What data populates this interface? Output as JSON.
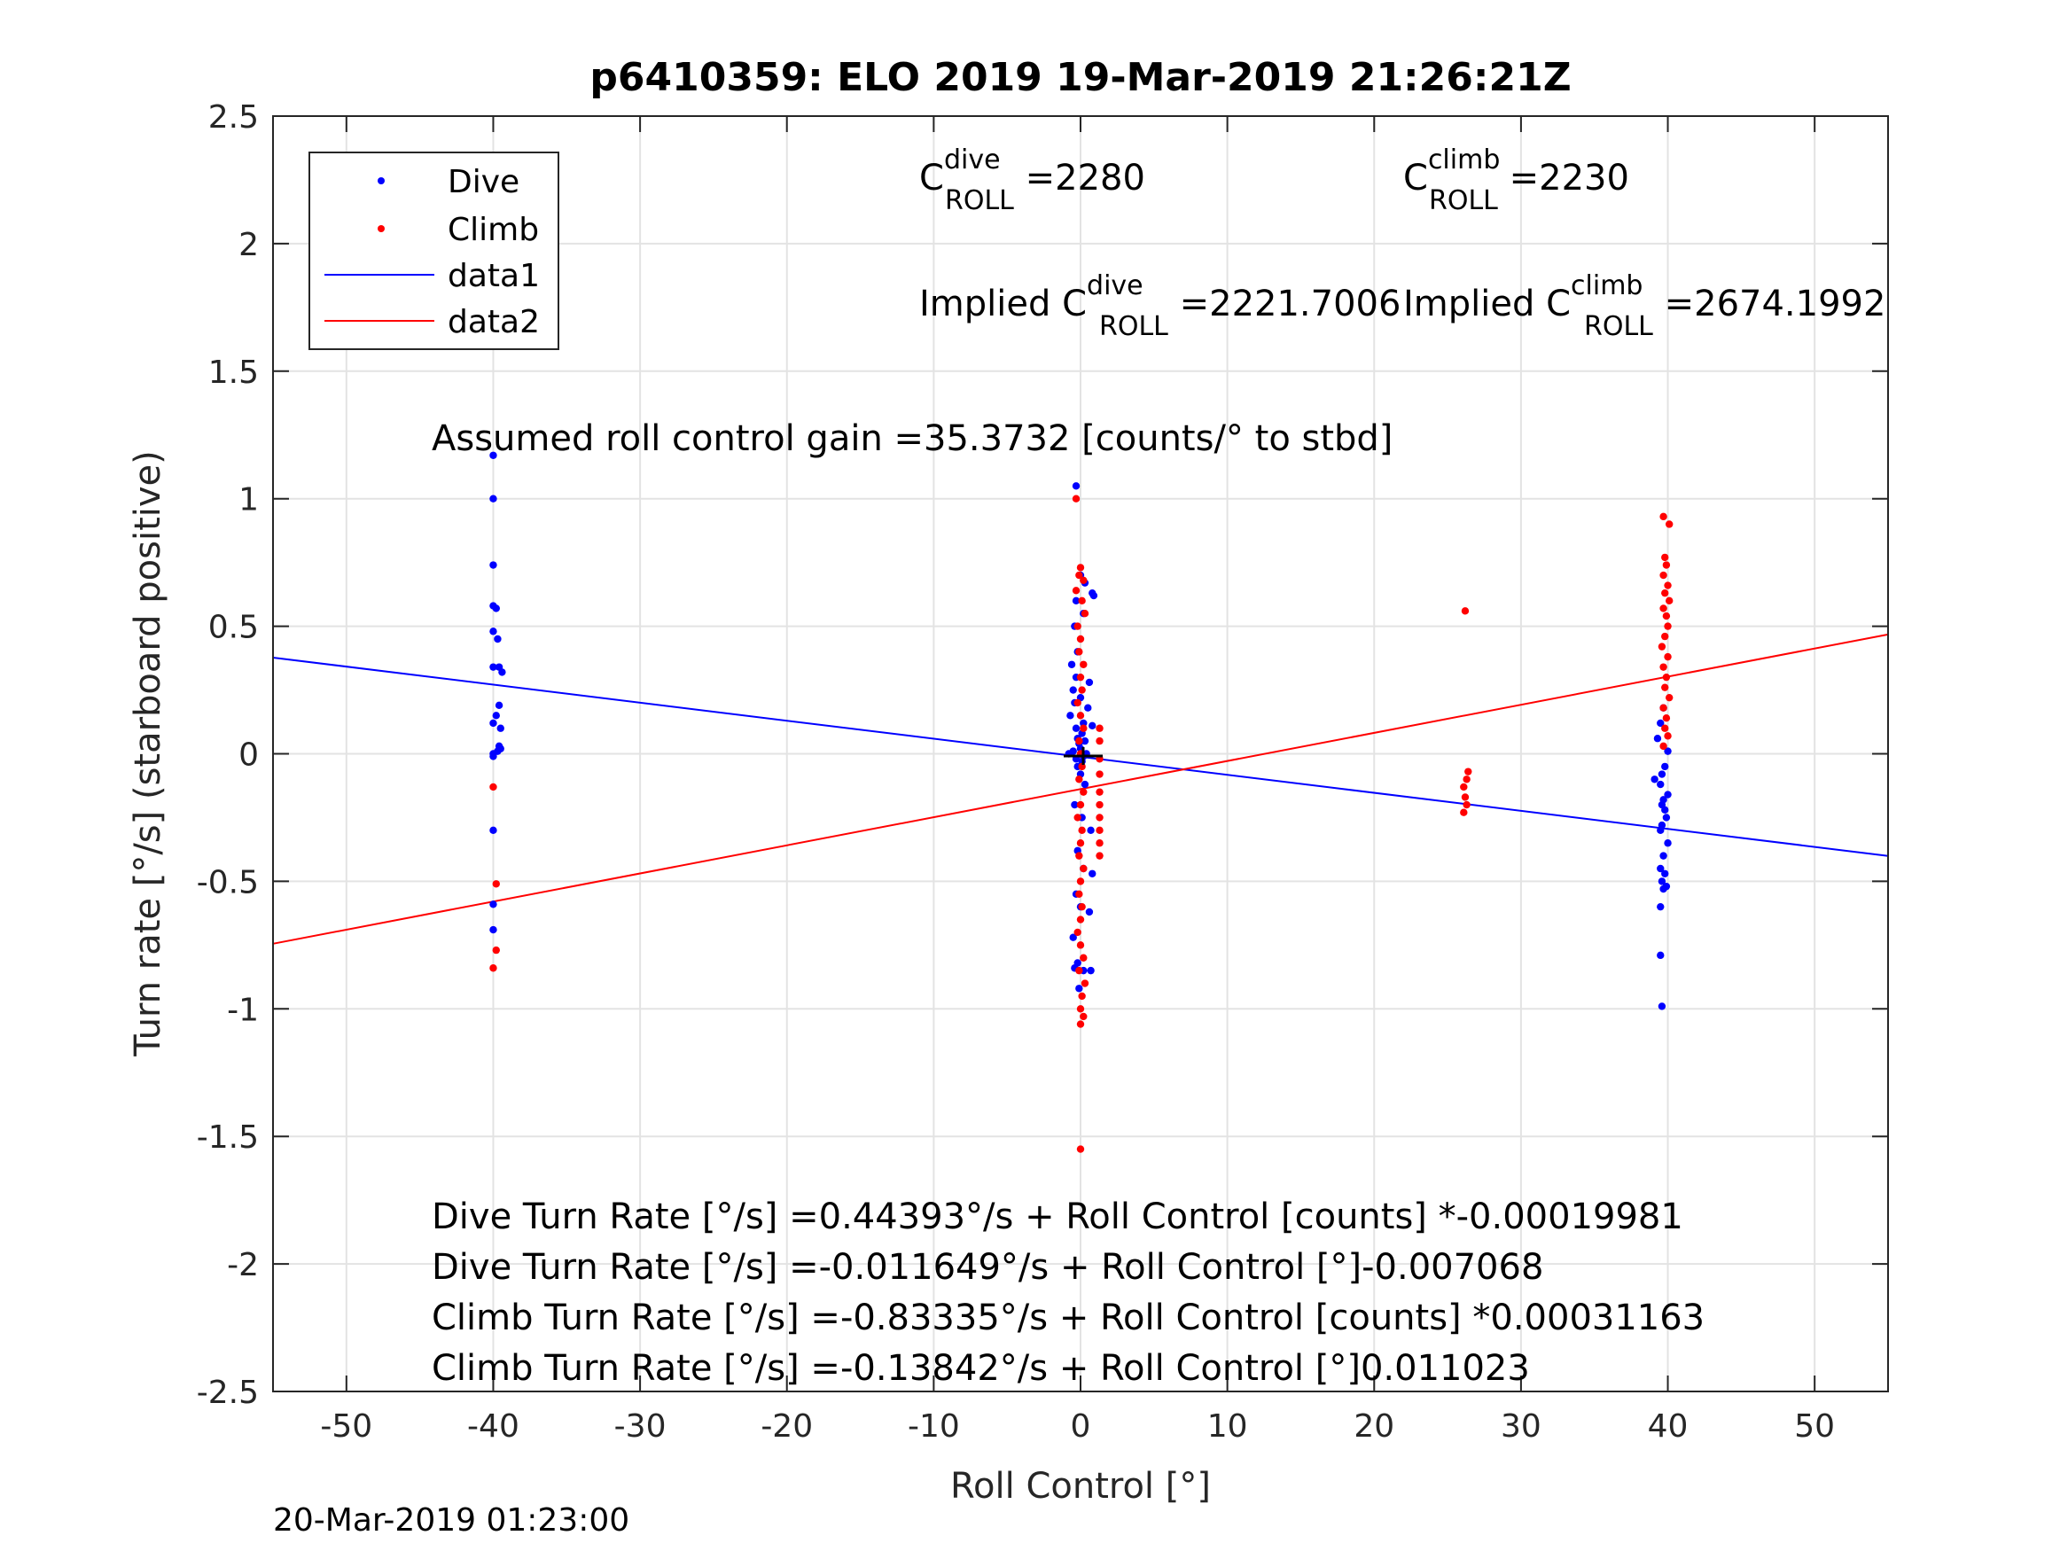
{
  "chart_data": {
    "type": "scatter",
    "title": "p6410359: ELO 2019 19-Mar-2019 21:26:21Z",
    "xlabel": "Roll Control [°]",
    "ylabel": "Turn rate [°/s] (starboard positive)",
    "xlim": [
      -55,
      55
    ],
    "ylim": [
      -2.5,
      2.5
    ],
    "xticks": [
      -50,
      -40,
      -30,
      -20,
      -10,
      0,
      10,
      20,
      30,
      40,
      50
    ],
    "yticks": [
      -2.5,
      -2,
      -1.5,
      -1,
      -0.5,
      0,
      0.5,
      1,
      1.5,
      2,
      2.5
    ],
    "xtick_labels": [
      "-50",
      "-40",
      "-30",
      "-20",
      "-10",
      "0",
      "10",
      "20",
      "30",
      "40",
      "50"
    ],
    "ytick_labels": [
      "-2.5",
      "-2",
      "-1.5",
      "-1",
      "-0.5",
      "0",
      "0.5",
      "1",
      "1.5",
      "2",
      "2.5"
    ],
    "grid": true,
    "legend_position": "top-left",
    "series": [
      {
        "name": "Dive",
        "kind": "points",
        "color": "#0000ff",
        "points": [
          [
            -40,
            1.17
          ],
          [
            -40,
            1.0
          ],
          [
            -40,
            0.74
          ],
          [
            -40,
            0.58
          ],
          [
            -39.8,
            0.57
          ],
          [
            -40,
            0.48
          ],
          [
            -39.7,
            0.45
          ],
          [
            -40,
            0.34
          ],
          [
            -39.6,
            0.34
          ],
          [
            -39.4,
            0.32
          ],
          [
            -39.6,
            0.19
          ],
          [
            -39.8,
            0.15
          ],
          [
            -40,
            0.12
          ],
          [
            -39.5,
            0.1
          ],
          [
            -39.6,
            0.03
          ],
          [
            -39.7,
            0.01
          ],
          [
            -40,
            0.0
          ],
          [
            -40,
            -0.01
          ],
          [
            -39.5,
            0.02
          ],
          [
            -40,
            -0.3
          ],
          [
            -40,
            -0.59
          ],
          [
            -40,
            -0.69
          ],
          [
            -0.3,
            1.05
          ],
          [
            0.0,
            0.7
          ],
          [
            0.3,
            0.67
          ],
          [
            0.8,
            0.63
          ],
          [
            0.9,
            0.62
          ],
          [
            -0.3,
            0.6
          ],
          [
            0.2,
            0.55
          ],
          [
            -0.4,
            0.5
          ],
          [
            -0.2,
            0.4
          ],
          [
            -0.6,
            0.35
          ],
          [
            -0.3,
            0.3
          ],
          [
            0.6,
            0.28
          ],
          [
            -0.5,
            0.25
          ],
          [
            0.0,
            0.22
          ],
          [
            -0.4,
            0.2
          ],
          [
            0.5,
            0.18
          ],
          [
            -0.7,
            0.15
          ],
          [
            0.2,
            0.12
          ],
          [
            0.8,
            0.11
          ],
          [
            -0.3,
            0.1
          ],
          [
            0.1,
            0.08
          ],
          [
            -0.2,
            0.06
          ],
          [
            0.3,
            0.05
          ],
          [
            -0.1,
            0.04
          ],
          [
            0.0,
            0.02
          ],
          [
            -0.5,
            0.01
          ],
          [
            0.4,
            0.0
          ],
          [
            -0.8,
            0.0
          ],
          [
            0.2,
            -0.01
          ],
          [
            -0.3,
            -0.02
          ],
          [
            0.1,
            -0.03
          ],
          [
            -0.2,
            -0.05
          ],
          [
            0.0,
            -0.08
          ],
          [
            0.3,
            -0.12
          ],
          [
            -0.4,
            -0.2
          ],
          [
            0.1,
            -0.25
          ],
          [
            0.7,
            -0.3
          ],
          [
            -0.2,
            -0.38
          ],
          [
            0.2,
            -0.45
          ],
          [
            0.8,
            -0.47
          ],
          [
            -0.3,
            -0.55
          ],
          [
            0.0,
            -0.6
          ],
          [
            0.6,
            -0.62
          ],
          [
            -0.5,
            -0.72
          ],
          [
            -0.2,
            -0.82
          ],
          [
            -0.4,
            -0.84
          ],
          [
            0.2,
            -0.85
          ],
          [
            0.7,
            -0.85
          ],
          [
            -0.1,
            -0.92
          ],
          [
            39.7,
            0.18
          ],
          [
            39.5,
            0.12
          ],
          [
            39.3,
            0.06
          ],
          [
            40.0,
            0.01
          ],
          [
            39.8,
            -0.05
          ],
          [
            39.6,
            -0.08
          ],
          [
            39.1,
            -0.1
          ],
          [
            39.5,
            -0.12
          ],
          [
            40.0,
            -0.16
          ],
          [
            39.7,
            -0.18
          ],
          [
            39.6,
            -0.2
          ],
          [
            39.8,
            -0.22
          ],
          [
            39.9,
            -0.25
          ],
          [
            39.6,
            -0.28
          ],
          [
            39.5,
            -0.3
          ],
          [
            40.0,
            -0.35
          ],
          [
            39.7,
            -0.4
          ],
          [
            39.5,
            -0.45
          ],
          [
            39.8,
            -0.47
          ],
          [
            39.6,
            -0.5
          ],
          [
            39.9,
            -0.52
          ],
          [
            39.7,
            -0.53
          ],
          [
            39.5,
            -0.6
          ],
          [
            39.5,
            -0.79
          ],
          [
            39.6,
            -0.99
          ]
        ]
      },
      {
        "name": "Climb",
        "kind": "points",
        "color": "#ff0000",
        "points": [
          [
            -40,
            -0.13
          ],
          [
            -39.8,
            -0.51
          ],
          [
            -39.8,
            -0.77
          ],
          [
            -40,
            -0.84
          ],
          [
            -0.3,
            1.0
          ],
          [
            0.0,
            0.73
          ],
          [
            -0.1,
            0.7
          ],
          [
            0.2,
            0.68
          ],
          [
            -0.3,
            0.64
          ],
          [
            0.1,
            0.6
          ],
          [
            0.3,
            0.55
          ],
          [
            -0.2,
            0.5
          ],
          [
            0.0,
            0.45
          ],
          [
            -0.1,
            0.4
          ],
          [
            0.2,
            0.35
          ],
          [
            0.0,
            0.3
          ],
          [
            0.1,
            0.25
          ],
          [
            -0.2,
            0.2
          ],
          [
            0.0,
            0.15
          ],
          [
            0.2,
            0.1
          ],
          [
            -0.1,
            0.05
          ],
          [
            0.0,
            0.0
          ],
          [
            0.1,
            -0.05
          ],
          [
            -0.1,
            -0.1
          ],
          [
            0.2,
            -0.15
          ],
          [
            0.0,
            -0.2
          ],
          [
            -0.2,
            -0.25
          ],
          [
            0.1,
            -0.3
          ],
          [
            0.0,
            -0.35
          ],
          [
            -0.1,
            -0.4
          ],
          [
            0.2,
            -0.45
          ],
          [
            0.0,
            -0.5
          ],
          [
            -0.1,
            -0.55
          ],
          [
            0.1,
            -0.6
          ],
          [
            0.0,
            -0.65
          ],
          [
            -0.2,
            -0.7
          ],
          [
            0.0,
            -0.75
          ],
          [
            0.2,
            -0.8
          ],
          [
            -0.1,
            -0.85
          ],
          [
            0.3,
            -0.9
          ],
          [
            0.1,
            -0.95
          ],
          [
            0.0,
            -1.0
          ],
          [
            0.2,
            -1.03
          ],
          [
            0.0,
            -1.06
          ],
          [
            0.0,
            -1.55
          ],
          [
            1.3,
            0.1
          ],
          [
            1.3,
            0.05
          ],
          [
            1.3,
            -0.02
          ],
          [
            1.3,
            -0.08
          ],
          [
            1.3,
            -0.15
          ],
          [
            1.3,
            -0.2
          ],
          [
            1.3,
            -0.25
          ],
          [
            1.3,
            -0.3
          ],
          [
            1.3,
            -0.35
          ],
          [
            1.3,
            -0.4
          ],
          [
            26.2,
            0.56
          ],
          [
            26.4,
            -0.07
          ],
          [
            26.3,
            -0.1
          ],
          [
            26.1,
            -0.13
          ],
          [
            26.2,
            -0.17
          ],
          [
            26.3,
            -0.2
          ],
          [
            26.1,
            -0.23
          ],
          [
            39.7,
            0.93
          ],
          [
            40.1,
            0.9
          ],
          [
            39.8,
            0.77
          ],
          [
            39.9,
            0.74
          ],
          [
            39.7,
            0.7
          ],
          [
            40.0,
            0.66
          ],
          [
            39.8,
            0.63
          ],
          [
            40.1,
            0.6
          ],
          [
            39.7,
            0.57
          ],
          [
            39.9,
            0.54
          ],
          [
            40.0,
            0.5
          ],
          [
            39.8,
            0.46
          ],
          [
            39.6,
            0.42
          ],
          [
            40.0,
            0.38
          ],
          [
            39.7,
            0.34
          ],
          [
            39.9,
            0.3
          ],
          [
            39.8,
            0.26
          ],
          [
            40.1,
            0.22
          ],
          [
            39.7,
            0.18
          ],
          [
            39.9,
            0.14
          ],
          [
            39.8,
            0.1
          ],
          [
            40.0,
            0.07
          ],
          [
            39.7,
            0.03
          ]
        ]
      },
      {
        "name": "data1",
        "kind": "line",
        "color": "#0000ff",
        "intercept": -0.011649,
        "slope": -0.007068
      },
      {
        "name": "data2",
        "kind": "line",
        "color": "#ff0000",
        "intercept": -0.13842,
        "slope": 0.011023
      }
    ],
    "annotations": {
      "c_dive": {
        "base": "C",
        "sup": "dive",
        "sub": "ROLL",
        "value": " =2280"
      },
      "c_climb": {
        "base": "C",
        "sup": "climb",
        "sub": "ROLL",
        "value": " =2230"
      },
      "implied_dive": {
        "base": "Implied C",
        "sup": "dive",
        "sub": "ROLL",
        "value": " =2221.7006"
      },
      "implied_climb": {
        "base": "Implied C",
        "sup": "climb",
        "sub": "ROLL",
        "value": " =2674.1992"
      },
      "gain": "Assumed roll control gain =35.3732 [counts/° to stbd]",
      "equations": [
        "Dive Turn Rate [°/s] =0.44393°/s + Roll Control [counts] *-0.00019981",
        "Dive Turn Rate [°/s] =-0.011649°/s + Roll Control [°]-0.007068",
        "Climb Turn Rate [°/s] =-0.83335°/s + Roll Control [counts] *0.00031163",
        "Climb Turn Rate [°/s] =-0.13842°/s + Roll Control [°]0.011023"
      ]
    },
    "footer": "20-Mar-2019 01:23:00"
  }
}
